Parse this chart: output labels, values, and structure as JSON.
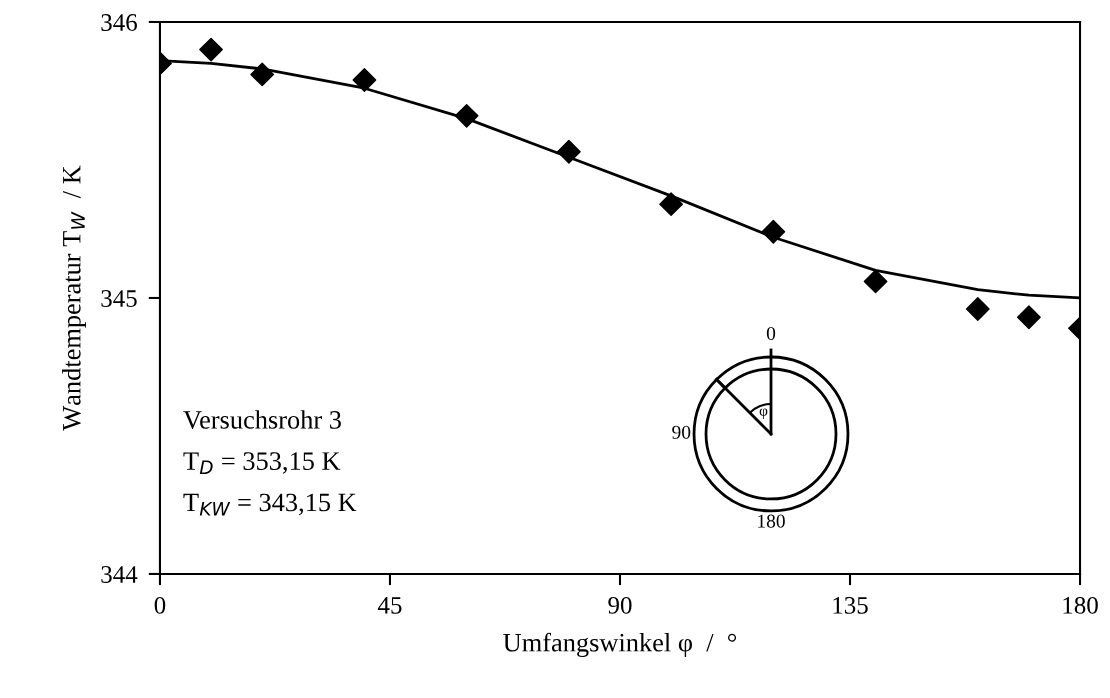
{
  "chart_data": {
    "type": "scatter",
    "xlabel": "Umfangswinkel φ  /  °",
    "ylabel": "Wandtemperatur T$_{W}$  / K",
    "xlim": [
      0,
      180
    ],
    "ylim": [
      344,
      346
    ],
    "xticks": [
      0,
      45,
      90,
      135,
      180
    ],
    "yticks": [
      344,
      345,
      346
    ],
    "grid": false,
    "legend": false,
    "series": [
      {
        "marker": "diamond",
        "color": "#000000",
        "x": [
          0,
          10,
          20,
          40,
          60,
          80,
          100,
          120,
          140,
          160,
          170,
          180
        ],
        "values": [
          345.85,
          345.9,
          345.81,
          345.79,
          345.66,
          345.53,
          345.34,
          345.24,
          345.06,
          344.96,
          344.93,
          344.89
        ]
      },
      {
        "type": "line",
        "marker": "none",
        "line_style": "solid",
        "color": "#000000",
        "x": [
          0,
          10,
          20,
          40,
          60,
          80,
          100,
          120,
          140,
          160,
          170,
          180
        ],
        "values": [
          345.86,
          345.85,
          345.83,
          345.76,
          345.65,
          345.51,
          345.37,
          345.22,
          345.1,
          345.03,
          345.01,
          345.0
        ]
      }
    ],
    "annotations": [
      "Versuchsrohr 3",
      "T$_{D}$ = 353,15 K",
      "T$_{KW}$ = 343,15 K",
      "0",
      "90",
      "180",
      "φ"
    ]
  }
}
